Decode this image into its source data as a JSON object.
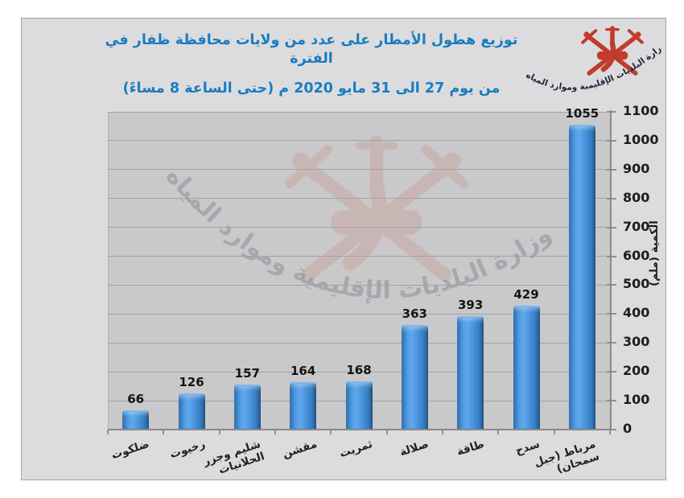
{
  "page": {
    "background": "#ffffff"
  },
  "title": {
    "line1": "توزيع هطول الأمطار على عدد من ولايات محافظة ظفار  في الفترة",
    "line2": "من يوم 27 الى 31  مايو 2020 م (حتى الساعة  8  مساءً)"
  },
  "logo": {
    "ministry_name": "وزارة البلديات الإقليمية وموارد المياه",
    "emblem": "oman-national-emblem-khanjar-and-crossed-swords"
  },
  "colors": {
    "title_blue": "#1a7cc0",
    "bar_blue": "#3f8ed8",
    "emblem_red": "#c23b2c",
    "panel_bg": "#dcdcde",
    "plot_bg": "#c9c9cb",
    "grid": "#a2a2a4",
    "axis": "#8a8a8c",
    "label_text": "#1c1c1c"
  },
  "chart_data": {
    "type": "bar",
    "title": "توزيع هطول الأمطار على عدد من ولايات محافظة ظفار في الفترة من يوم 27 الى 31 مايو 2020 م (حتى الساعة 8 مساءً)",
    "categories": [
      "ضلكوت",
      "رخيوت",
      "شليم وجزر الحلانيات",
      "مقشن",
      "ثمريت",
      "صلالة",
      "طاقة",
      "سدح",
      "مرباط (جبل سمحان)"
    ],
    "categories_display": [
      "ضلكوت",
      "رخيوت",
      "شليم وجزر\nالحلانيات",
      "مقشن",
      "ثمريت",
      "صلالة",
      "طاقة",
      "سدح",
      "مرباط (جبل\nسمحان)"
    ],
    "values": [
      66,
      126,
      157,
      164,
      168,
      363,
      393,
      429,
      1055
    ],
    "xlabel": "",
    "ylabel": "الكمية (ملم)",
    "ylim": [
      0,
      1100
    ],
    "yticks": [
      0,
      100,
      200,
      300,
      400,
      500,
      600,
      700,
      800,
      900,
      1000,
      1100
    ],
    "grid": true,
    "legend": false,
    "value_labels": true,
    "y_axis_side": "right",
    "bar_color": "#3f8ed8"
  }
}
